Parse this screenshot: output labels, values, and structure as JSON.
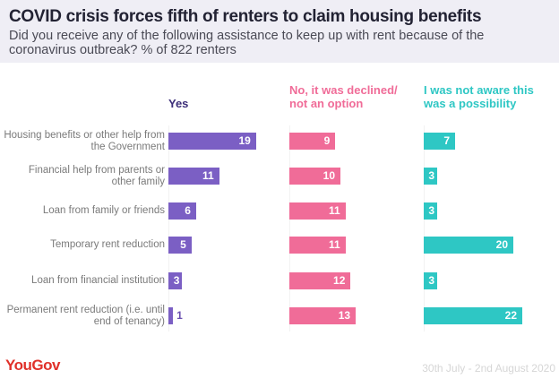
{
  "header": {
    "title": "COVID crisis forces fifth of renters to claim housing benefits",
    "subtitle": "Did you receive any of the following assistance to keep up with rent because of the coronavirus outbreak? % of 822 renters"
  },
  "chart_data": {
    "type": "bar",
    "orientation": "horizontal",
    "title": "COVID crisis forces fifth of renters to claim housing benefits",
    "subtitle": "Did you receive any of the following assistance to keep up with rent because of the coronavirus outbreak? % of 822 renters",
    "categories": [
      "Housing benefits or other help from the Government",
      "Financial help from parents or other family",
      "Loan from family or friends",
      "Temporary rent reduction",
      "Loan from financial institution",
      "Permanent rent reduction (i.e. until end of tenancy)"
    ],
    "series": [
      {
        "name": "Yes",
        "color": "#7b5fc4",
        "values": [
          19,
          11,
          6,
          5,
          3,
          1
        ]
      },
      {
        "name": "No, it was declined/ not an option",
        "color": "#f06c98",
        "values": [
          9,
          10,
          11,
          11,
          12,
          13
        ]
      },
      {
        "name": "I was not aware this was a possibility",
        "color": "#2ec7c4",
        "values": [
          7,
          3,
          3,
          20,
          3,
          22
        ]
      }
    ],
    "xlabel": "",
    "ylabel": "",
    "grid": false,
    "legend": "column headers"
  },
  "footer": {
    "logo": "YouGov",
    "date": "30th July - 2nd August 2020"
  }
}
